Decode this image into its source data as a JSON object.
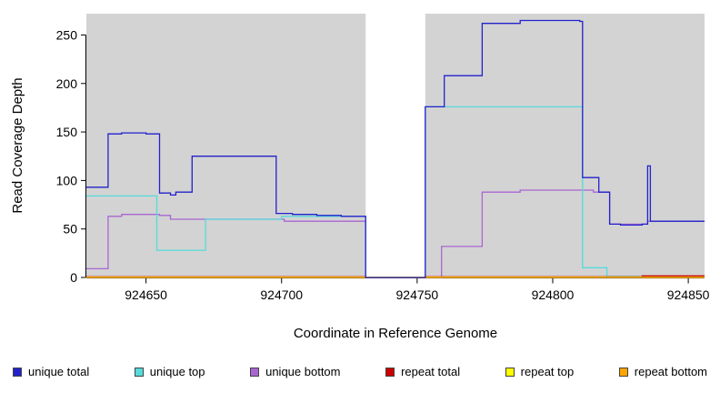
{
  "chart_data": {
    "type": "line",
    "step": true,
    "title": "",
    "xlabel": "Coordinate in Reference Genome",
    "ylabel": "Read Coverage Depth",
    "xlim": [
      924628,
      924856
    ],
    "ylim": [
      0,
      272
    ],
    "x_ticks": [
      924650,
      924700,
      924750,
      924800,
      924850
    ],
    "y_ticks": [
      0,
      50,
      100,
      150,
      200,
      250
    ],
    "grid": false,
    "legend_position": "bottom",
    "panel_fill": "#d3d3d3",
    "background": "#ffffff",
    "gap_region": [
      924731,
      924753
    ],
    "series": [
      {
        "name": "unique total",
        "color": "#2222cc",
        "z": 6,
        "points": [
          [
            924628,
            93
          ],
          [
            924636,
            148
          ],
          [
            924641,
            149
          ],
          [
            924650,
            148
          ],
          [
            924655,
            87
          ],
          [
            924659,
            85
          ],
          [
            924661,
            88
          ],
          [
            924667,
            125
          ],
          [
            924698,
            66
          ],
          [
            924704,
            65
          ],
          [
            924713,
            64
          ],
          [
            924722,
            63
          ],
          [
            924731,
            0
          ],
          [
            924753,
            176
          ],
          [
            924760,
            208
          ],
          [
            924774,
            262
          ],
          [
            924788,
            265
          ],
          [
            924810,
            264
          ],
          [
            924811,
            103
          ],
          [
            924817,
            88
          ],
          [
            924821,
            55
          ],
          [
            924825,
            54
          ],
          [
            924833,
            55
          ],
          [
            924835,
            115
          ],
          [
            924836,
            58
          ],
          [
            924856,
            58
          ]
        ]
      },
      {
        "name": "unique top",
        "color": "#55dbdb",
        "z": 2,
        "points": [
          [
            924628,
            84
          ],
          [
            924654,
            28
          ],
          [
            924672,
            60
          ],
          [
            924700,
            63
          ],
          [
            924731,
            0
          ],
          [
            924753,
            176
          ],
          [
            924811,
            10
          ],
          [
            924820,
            1
          ],
          [
            924856,
            1
          ]
        ]
      },
      {
        "name": "unique bottom",
        "color": "#a966d2",
        "z": 1,
        "points": [
          [
            924628,
            9
          ],
          [
            924636,
            63
          ],
          [
            924641,
            65
          ],
          [
            924655,
            64
          ],
          [
            924659,
            60
          ],
          [
            924701,
            58
          ],
          [
            924731,
            0
          ],
          [
            924759,
            32
          ],
          [
            924774,
            88
          ],
          [
            924788,
            90
          ],
          [
            924811,
            90
          ],
          [
            924815,
            88
          ],
          [
            924821,
            55
          ],
          [
            924835,
            58
          ],
          [
            924856,
            58
          ]
        ]
      },
      {
        "name": "repeat total",
        "color": "#cc0000",
        "z": 3,
        "points": [
          [
            924628,
            0.7
          ],
          [
            924731,
            0
          ],
          [
            924753,
            0.7
          ],
          [
            924833,
            1.6
          ],
          [
            924856,
            1.6
          ]
        ]
      },
      {
        "name": "repeat top",
        "color": "#ffff00",
        "z": 4,
        "points": [
          [
            924628,
            0.3
          ],
          [
            924856,
            0.3
          ]
        ]
      },
      {
        "name": "repeat bottom",
        "color": "#ffa500",
        "z": 5,
        "points": [
          [
            924628,
            0
          ],
          [
            924856,
            0
          ]
        ]
      }
    ]
  }
}
